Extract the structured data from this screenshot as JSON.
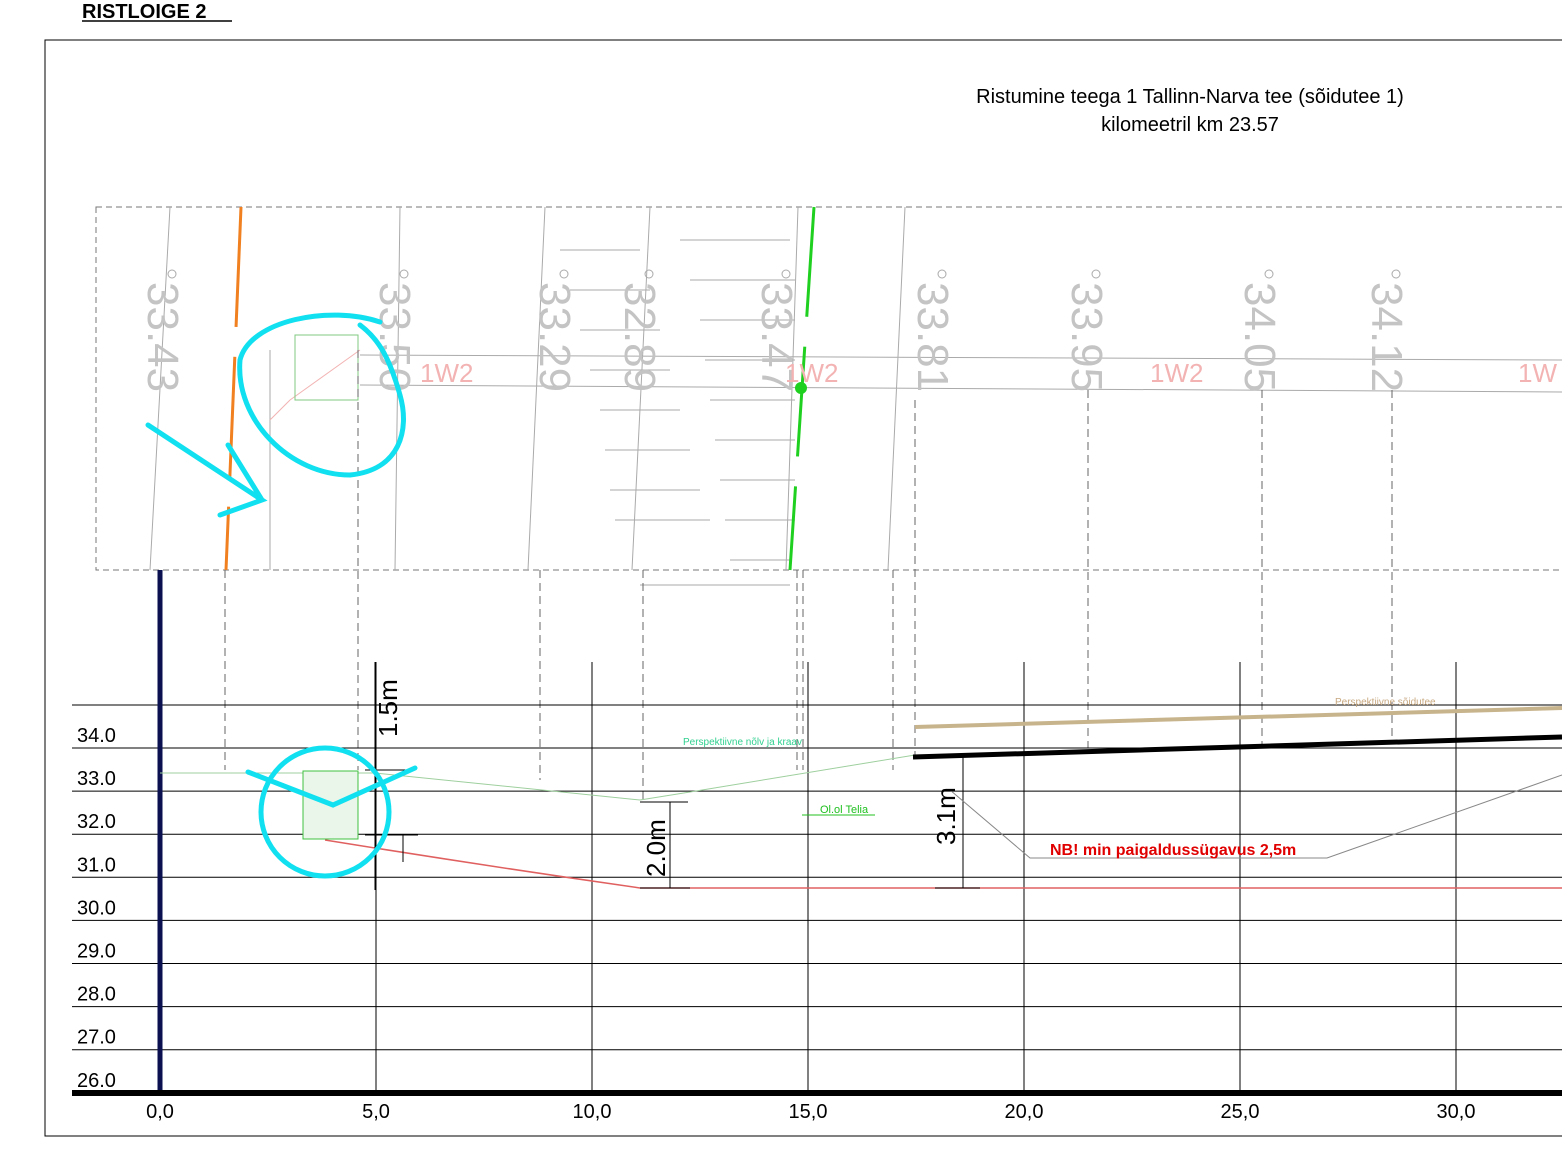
{
  "heading": "RISTLOIGE 2",
  "title": {
    "line1": "Ristumine teega 1 Tallinn-Narva tee (sõidutee 1)",
    "line2": "kilomeetril km 23.57"
  },
  "plan": {
    "elevations": [
      "33.43",
      "33.50",
      "33.29",
      "32.89",
      "33.47",
      "33.81",
      "33.95",
      "34.05",
      "34.12"
    ],
    "pipe_labels": [
      "1W2",
      "1W2",
      "1W2",
      "1W"
    ]
  },
  "profile": {
    "y_labels": [
      "34.0",
      "33.0",
      "32.0",
      "31.0",
      "30.0",
      "29.0",
      "28.0",
      "27.0",
      "26.0"
    ],
    "x_labels": [
      "0,0",
      "5,0",
      "10,0",
      "15,0",
      "20,0",
      "25,0",
      "30,0"
    ],
    "dimensions": [
      "1.5m",
      "2.0m",
      "3.1m"
    ],
    "annotations": {
      "slope": "Perspektiivne nõlv ja kraav",
      "road": "Perspektiivne sõidutee",
      "telia": "Ol.ol Telia",
      "note": "NB! min paigaldussügavus 2,5m"
    }
  }
}
